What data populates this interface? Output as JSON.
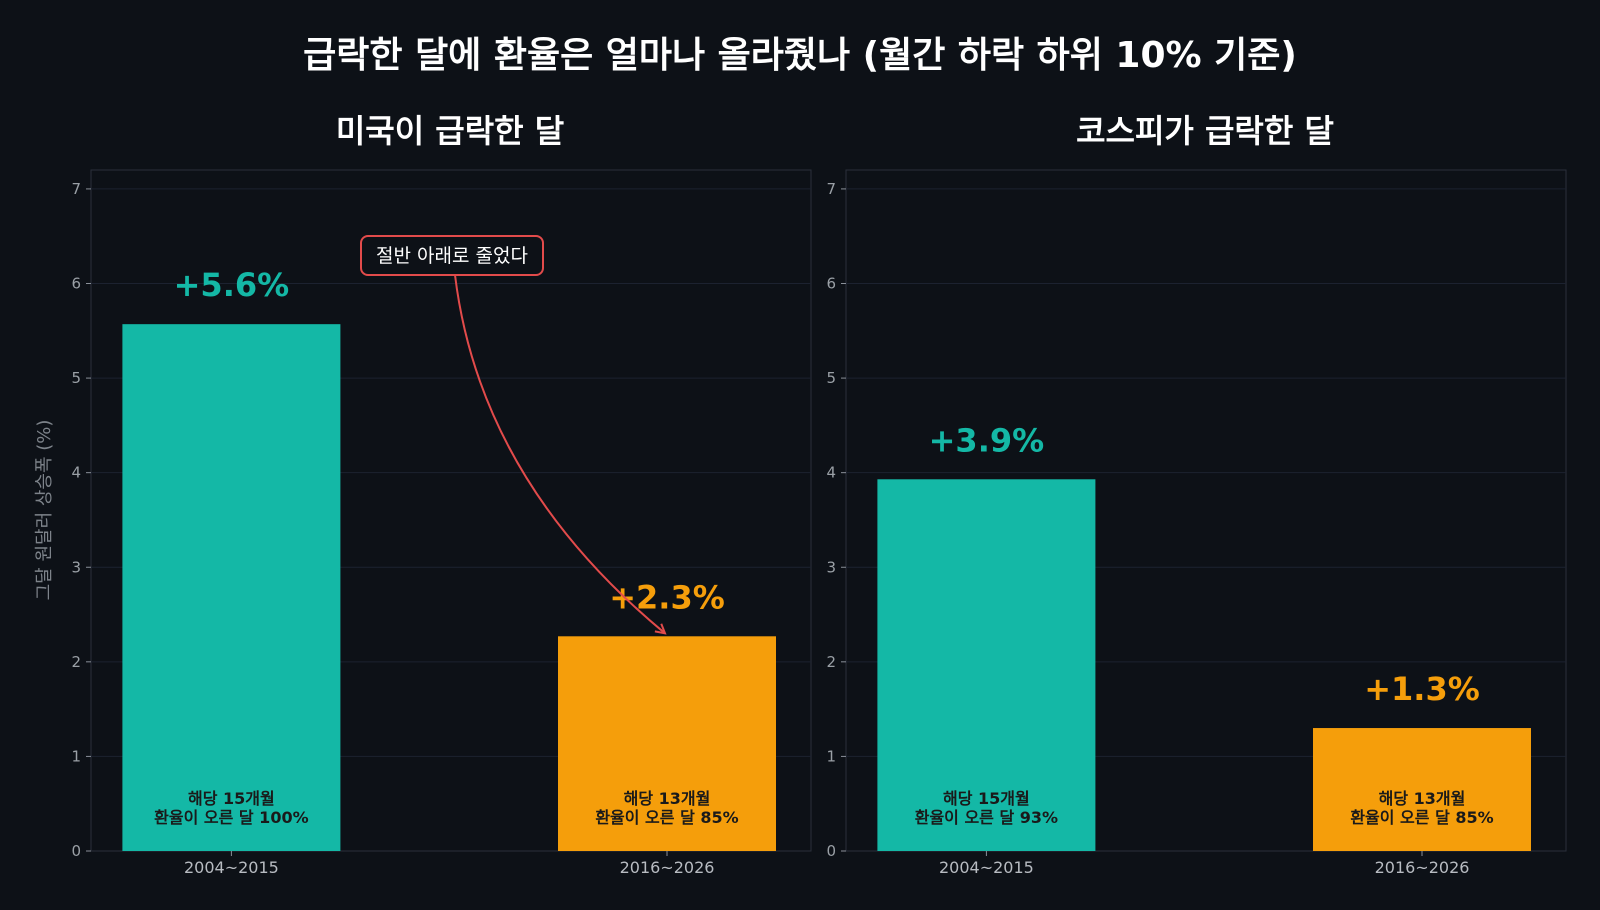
{
  "title": "급락한 달에 환율은 얼마나 올라줬나 (월간 하락 하위 10% 기준)",
  "ylabel": "그달 원달러 상승폭 (%)",
  "annotation": {
    "text": "절반 아래로 줄었다",
    "color": "#e24b4b"
  },
  "colors": {
    "background": "#0d1117",
    "early": "#14b8a6",
    "late": "#f59e0b",
    "grid": "#1c2230",
    "frame": "#2a303b"
  },
  "chart_data": [
    {
      "type": "bar",
      "title": "미국이 급락한 달",
      "categories": [
        "2004~2015",
        "2016~2026"
      ],
      "values": [
        5.57,
        2.27
      ],
      "value_labels": [
        "+5.6%",
        "+2.3%"
      ],
      "inner_labels": [
        [
          "해당 15개월",
          "환율이 오른 달 100%"
        ],
        [
          "해당 13개월",
          "환율이 오른 달 85%"
        ]
      ],
      "ylim": [
        0,
        7.2
      ],
      "yticks": [
        0,
        1,
        2,
        3,
        4,
        5,
        6,
        7
      ],
      "grid": true
    },
    {
      "type": "bar",
      "title": "코스피가 급락한 달",
      "categories": [
        "2004~2015",
        "2016~2026"
      ],
      "values": [
        3.93,
        1.3
      ],
      "value_labels": [
        "+3.9%",
        "+1.3%"
      ],
      "inner_labels": [
        [
          "해당 15개월",
          "환율이 오른 달 93%"
        ],
        [
          "해당 13개월",
          "환율이 오른 달 85%"
        ]
      ],
      "ylim": [
        0,
        7.2
      ],
      "yticks": [
        0,
        1,
        2,
        3,
        4,
        5,
        6,
        7
      ],
      "grid": true
    }
  ]
}
